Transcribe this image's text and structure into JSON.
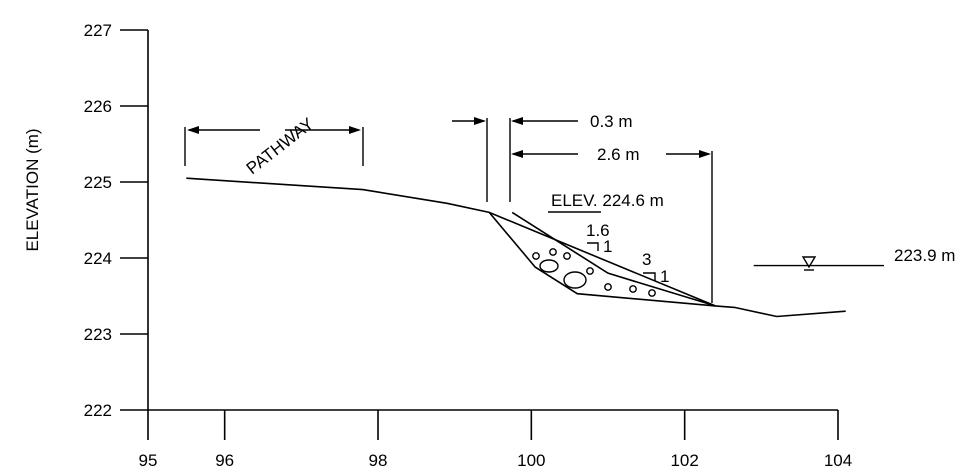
{
  "chart_data": {
    "type": "line",
    "xlabel": "",
    "ylabel": "ELEVATION (m)",
    "xlim": [
      95,
      104
    ],
    "ylim": [
      222,
      227
    ],
    "x_ticks": [
      "95",
      "96",
      "98",
      "100",
      "102",
      "104"
    ],
    "y_ticks": [
      "222",
      "223",
      "224",
      "225",
      "226",
      "227"
    ],
    "grid": false,
    "ground_profile": [
      {
        "x": 95.5,
        "y": 225.05
      },
      {
        "x": 97.8,
        "y": 224.9
      },
      {
        "x": 98.9,
        "y": 224.72
      },
      {
        "x": 99.45,
        "y": 224.6
      },
      {
        "x": 102.4,
        "y": 223.37
      },
      {
        "x": 102.65,
        "y": 223.35
      },
      {
        "x": 103.2,
        "y": 223.23
      },
      {
        "x": 104.1,
        "y": 223.3
      }
    ],
    "riprap_outline": [
      {
        "x": 99.75,
        "y": 224.6
      },
      {
        "x": 101.0,
        "y": 223.8
      },
      {
        "x": 102.4,
        "y": 223.37
      },
      {
        "x": 100.6,
        "y": 223.53
      },
      {
        "x": 100.05,
        "y": 223.88
      },
      {
        "x": 99.45,
        "y": 224.6
      }
    ],
    "water_level": {
      "x_start": 102.9,
      "x_end": 104.6,
      "y": 223.9
    }
  },
  "annotations": {
    "pathway": "PATHWAY",
    "dim_top": "0.3 m",
    "dim_width": "2.6 m",
    "elev_prefix": "ELEV",
    "elev_suffix": ". 224.6 m",
    "slope1_run": "1.6",
    "slope1_rise": "1",
    "slope2_run": "3",
    "slope2_rise": "1",
    "water_label": "223.9 m"
  }
}
